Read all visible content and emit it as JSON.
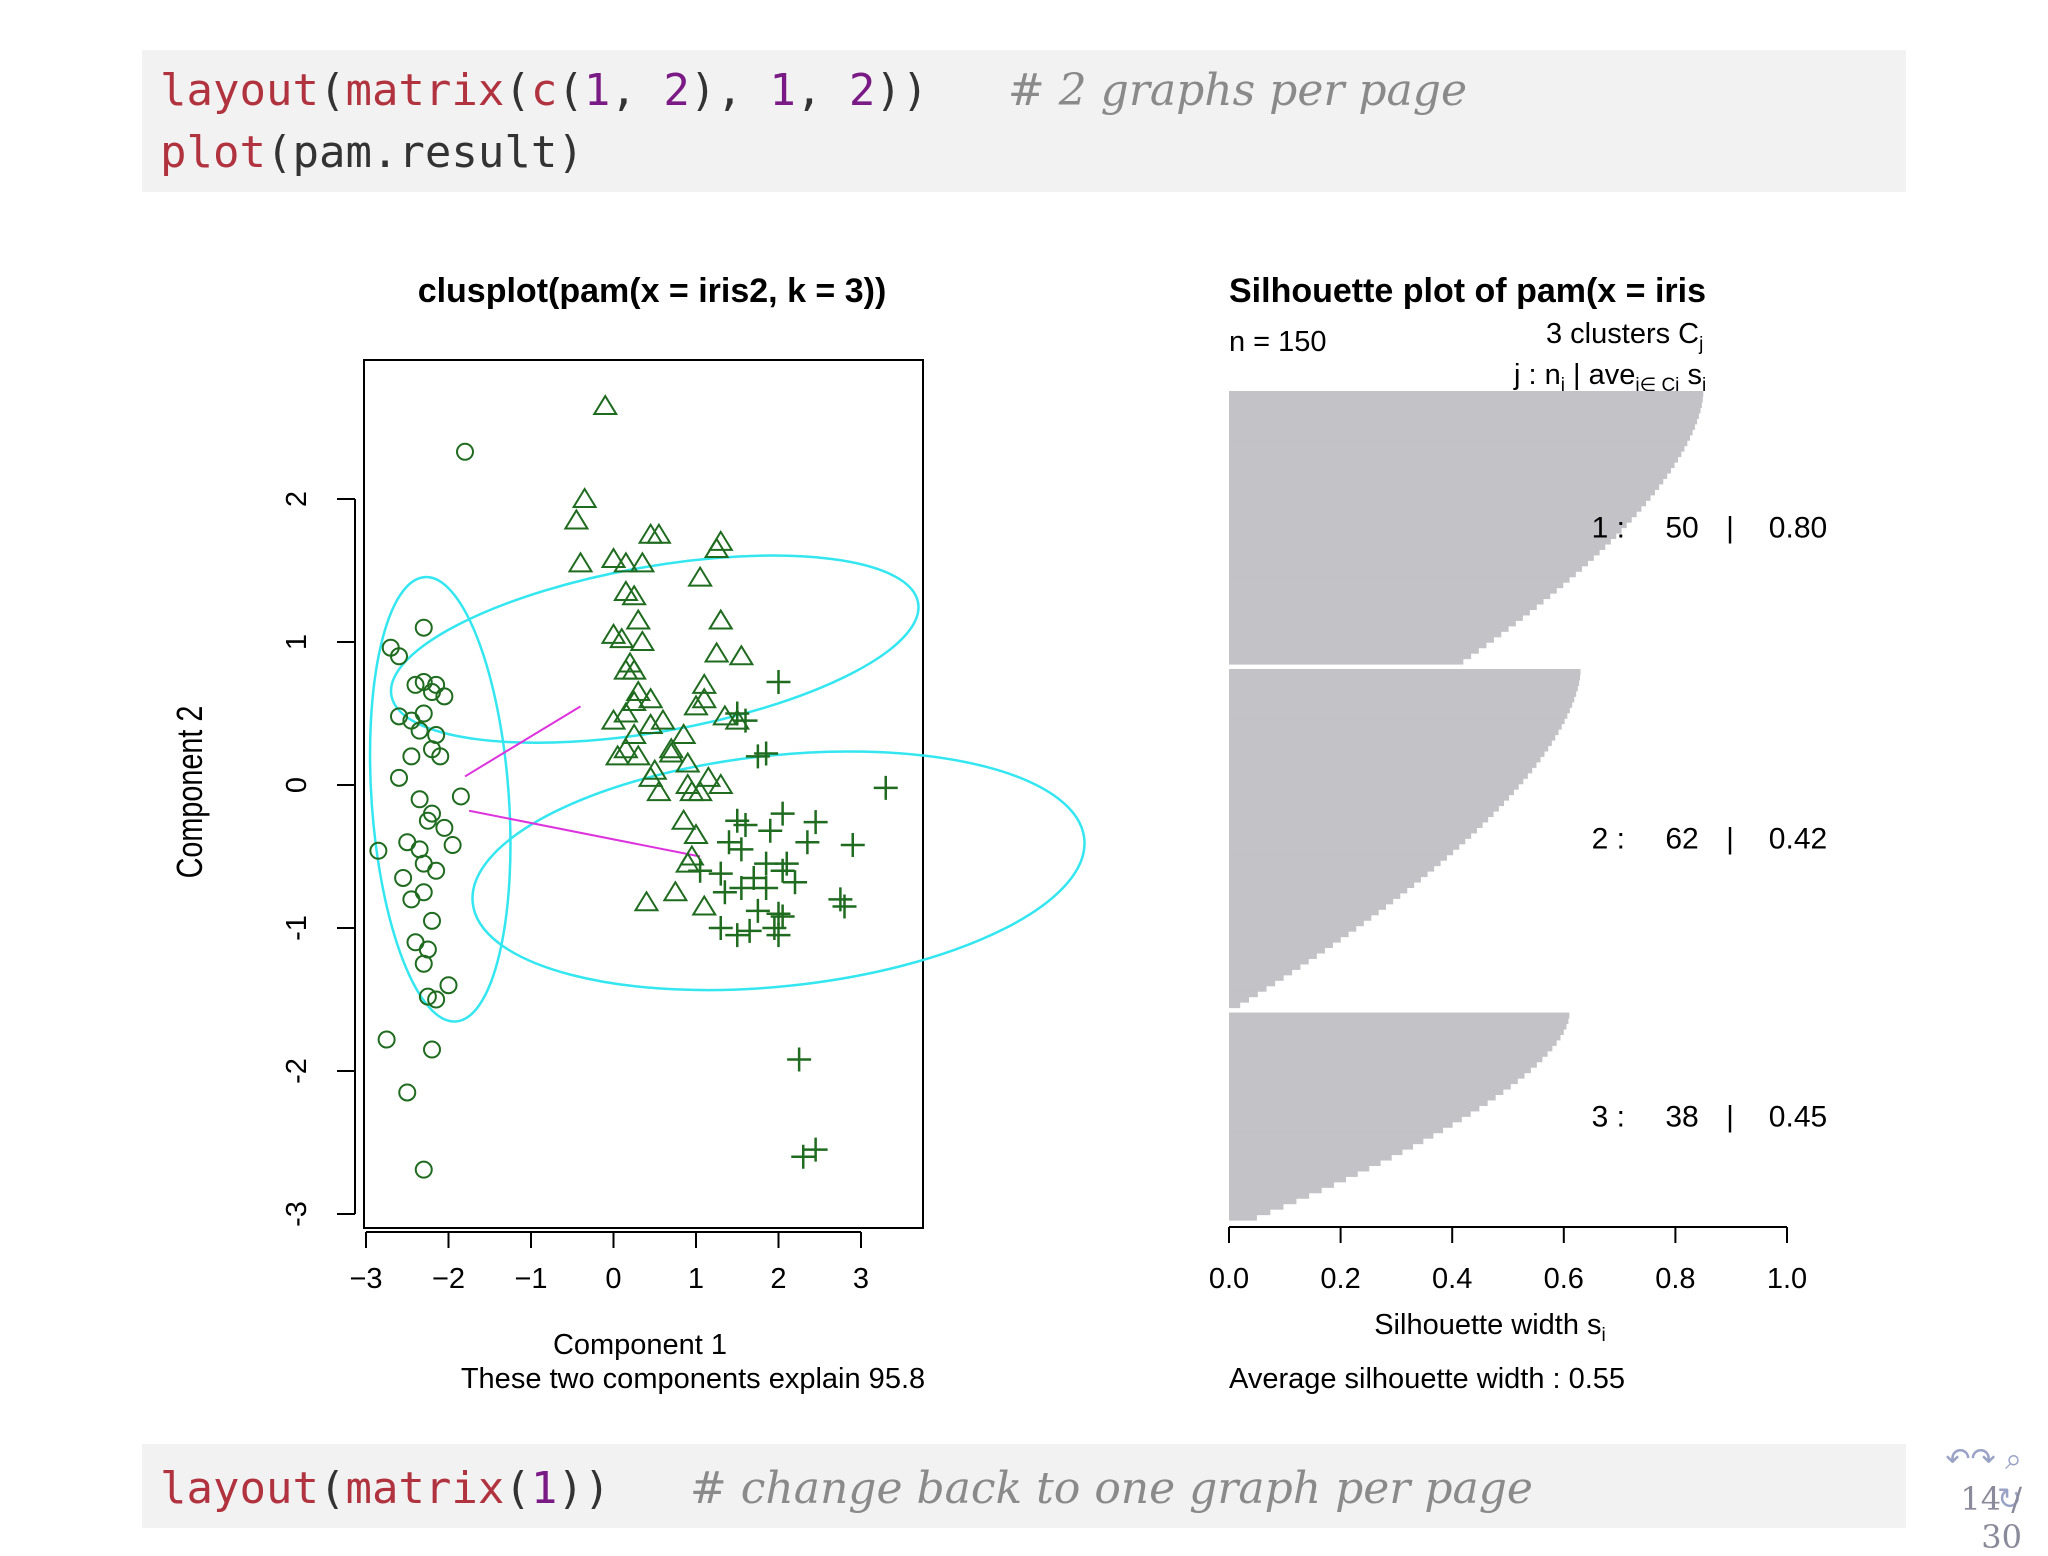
{
  "code_top": {
    "line1": {
      "fn1": "layout",
      "p1": "(",
      "fn2": "matrix",
      "p2": "(",
      "fn3": "c",
      "p3": "(",
      "n1": "1",
      "p4": ", ",
      "n2": "2",
      "p5": "), ",
      "n3": "1",
      "p6": ", ",
      "n4": "2",
      "p7": "))",
      "comment": "# 2 graphs per page"
    },
    "line2": {
      "fn1": "plot",
      "rest": "(pam.result)"
    }
  },
  "code_bottom": {
    "fn1": "layout",
    "p1": "(",
    "fn2": "matrix",
    "p2": "(",
    "n1": "1",
    "p3": "))",
    "comment": "# change back to one graph per page"
  },
  "nav": {
    "icons": "↶↷ ⌕ ↻",
    "page": "14 / 30"
  },
  "colors": {
    "ellipse": "#33e6f0",
    "points": "#1f6b1f",
    "link": "#dd33dd",
    "bar": "#c3c2c7"
  },
  "chart_data": [
    {
      "type": "scatter",
      "title": "clusplot(pam(x = iris2, k = 3))",
      "xlabel": "Component 1",
      "ylabel": "Component 2",
      "subtitle": "These two components explain 95.8",
      "xlim": [
        -3.0,
        3.7
      ],
      "ylim": [
        -3.0,
        3.0
      ],
      "xticks": [
        "−3",
        "−2",
        "−1",
        "0",
        "1",
        "2",
        "3"
      ],
      "yticks": [
        "-3",
        "-2",
        "-1",
        "0",
        "1",
        "2"
      ],
      "clusters": [
        {
          "marker": "circle",
          "ellipse": {
            "cx": -2.1,
            "cy": -0.1,
            "rx": 0.48,
            "ry": 2.7,
            "angle": 86
          },
          "points": [
            [
              -1.8,
              2.33
            ],
            [
              -2.7,
              0.96
            ],
            [
              -2.6,
              0.9
            ],
            [
              -2.3,
              1.1
            ],
            [
              -2.4,
              0.7
            ],
            [
              -2.3,
              0.72
            ],
            [
              -2.2,
              0.65
            ],
            [
              -2.45,
              0.45
            ],
            [
              -2.3,
              0.5
            ],
            [
              -2.35,
              0.38
            ],
            [
              -2.2,
              0.25
            ],
            [
              -2.1,
              0.2
            ],
            [
              -2.45,
              0.2
            ],
            [
              -2.6,
              0.05
            ],
            [
              -2.35,
              -0.1
            ],
            [
              -1.85,
              -0.08
            ],
            [
              -2.2,
              -0.2
            ],
            [
              -2.05,
              -0.3
            ],
            [
              -2.5,
              -0.4
            ],
            [
              -1.95,
              -0.42
            ],
            [
              -2.35,
              -0.45
            ],
            [
              -2.3,
              -0.55
            ],
            [
              -2.15,
              -0.6
            ],
            [
              -2.55,
              -0.65
            ],
            [
              -2.3,
              -0.75
            ],
            [
              -2.45,
              -0.8
            ],
            [
              -2.2,
              -0.95
            ],
            [
              -2.4,
              -1.1
            ],
            [
              -2.25,
              -1.15
            ],
            [
              -2.3,
              -1.25
            ],
            [
              -2.0,
              -1.4
            ],
            [
              -2.15,
              -1.5
            ],
            [
              -2.25,
              -1.48
            ],
            [
              -2.75,
              -1.78
            ],
            [
              -2.2,
              -1.85
            ],
            [
              -2.5,
              -2.15
            ],
            [
              -2.3,
              -2.69
            ],
            [
              -2.85,
              -0.46
            ],
            [
              -2.6,
              0.48
            ],
            [
              -2.15,
              0.35
            ],
            [
              -2.25,
              -0.25
            ],
            [
              -2.15,
              0.7
            ],
            [
              -2.05,
              0.62
            ]
          ]
        },
        {
          "marker": "triangle",
          "ellipse": {
            "cx": 0.5,
            "cy": 0.95,
            "rx": 1.87,
            "ry": 1.0,
            "angle": 80
          },
          "points": [
            [
              -0.1,
              2.65
            ],
            [
              -0.35,
              2.0
            ],
            [
              -0.45,
              1.85
            ],
            [
              -0.4,
              1.55
            ],
            [
              0.0,
              1.58
            ],
            [
              0.15,
              1.55
            ],
            [
              0.35,
              1.55
            ],
            [
              0.45,
              1.75
            ],
            [
              0.55,
              1.75
            ],
            [
              1.3,
              1.7
            ],
            [
              1.25,
              1.65
            ],
            [
              1.05,
              1.45
            ],
            [
              1.3,
              1.15
            ],
            [
              0.15,
              1.35
            ],
            [
              0.25,
              1.32
            ],
            [
              0.3,
              1.15
            ],
            [
              0.0,
              1.05
            ],
            [
              0.1,
              1.02
            ],
            [
              0.35,
              1.0
            ],
            [
              0.2,
              0.85
            ],
            [
              0.25,
              0.8
            ],
            [
              0.15,
              0.8
            ],
            [
              0.3,
              0.65
            ],
            [
              0.45,
              0.6
            ],
            [
              0.25,
              0.58
            ],
            [
              1.25,
              0.92
            ],
            [
              1.55,
              0.9
            ],
            [
              1.1,
              0.7
            ],
            [
              1.1,
              0.6
            ],
            [
              1.0,
              0.55
            ],
            [
              0.0,
              0.45
            ],
            [
              0.25,
              0.35
            ],
            [
              0.45,
              0.42
            ],
            [
              0.6,
              0.45
            ],
            [
              0.85,
              0.35
            ],
            [
              1.35,
              0.48
            ],
            [
              1.5,
              0.45
            ],
            [
              0.05,
              0.2
            ],
            [
              0.15,
              0.25
            ],
            [
              0.3,
              0.2
            ],
            [
              0.7,
              0.22
            ],
            [
              0.9,
              0.15
            ],
            [
              0.5,
              0.1
            ],
            [
              0.45,
              0.05
            ],
            [
              0.55,
              -0.05
            ],
            [
              0.9,
              0.0
            ],
            [
              0.95,
              -0.05
            ],
            [
              1.15,
              0.05
            ],
            [
              1.3,
              0.0
            ],
            [
              0.85,
              -0.25
            ],
            [
              1.0,
              -0.35
            ],
            [
              0.9,
              -0.55
            ],
            [
              0.75,
              -0.75
            ],
            [
              0.95,
              -0.5
            ],
            [
              1.1,
              -0.85
            ],
            [
              0.4,
              -0.82
            ],
            [
              1.05,
              -0.05
            ],
            [
              0.7,
              0.25
            ],
            [
              0.15,
              0.5
            ]
          ]
        },
        {
          "marker": "plus",
          "ellipse": {
            "cx": 2.0,
            "cy": -0.6,
            "rx": 2.15,
            "ry": 1.4,
            "angle": 84
          },
          "points": [
            [
              2.0,
              0.72
            ],
            [
              1.75,
              0.2
            ],
            [
              3.3,
              -0.02
            ],
            [
              1.5,
              -0.25
            ],
            [
              1.6,
              -0.28
            ],
            [
              2.45,
              -0.26
            ],
            [
              1.9,
              -0.32
            ],
            [
              2.35,
              -0.4
            ],
            [
              1.4,
              -0.4
            ],
            [
              1.55,
              -0.45
            ],
            [
              2.9,
              -0.42
            ],
            [
              1.85,
              -0.55
            ],
            [
              2.1,
              -0.55
            ],
            [
              2.05,
              -0.6
            ],
            [
              1.7,
              -0.65
            ],
            [
              1.3,
              -0.62
            ],
            [
              1.55,
              -0.72
            ],
            [
              1.35,
              -0.75
            ],
            [
              1.85,
              -0.72
            ],
            [
              2.2,
              -0.68
            ],
            [
              2.75,
              -0.8
            ],
            [
              2.8,
              -0.85
            ],
            [
              1.75,
              -0.88
            ],
            [
              2.0,
              -0.9
            ],
            [
              2.05,
              -0.92
            ],
            [
              1.3,
              -1.0
            ],
            [
              1.5,
              -1.05
            ],
            [
              1.65,
              -1.02
            ],
            [
              1.95,
              -1.0
            ],
            [
              2.0,
              -1.05
            ],
            [
              2.25,
              -1.92
            ],
            [
              2.3,
              -2.6
            ],
            [
              2.45,
              -2.55
            ],
            [
              1.85,
              0.22
            ],
            [
              1.5,
              0.5
            ],
            [
              1.6,
              0.45
            ],
            [
              1.05,
              -0.6
            ],
            [
              2.05,
              -0.2
            ]
          ]
        }
      ],
      "links": [
        [
          [
            -1.8,
            0.06
          ],
          [
            -0.4,
            0.55
          ]
        ],
        [
          [
            -1.75,
            -0.18
          ],
          [
            1.05,
            -0.5
          ]
        ]
      ]
    },
    {
      "type": "bar",
      "title": "Silhouette plot of pam(x = iris",
      "n_label": "n = 150",
      "header_line1": "3  clusters  C",
      "header_sub_j": "j",
      "header_line2_a": "j :  n",
      "header_line2_b": " | ave",
      "header_sub_i_cj": "i∈ Cj",
      "header_line2_c": "  s",
      "header_sub_i": "i",
      "xlabel": "Silhouette width s",
      "xlabel_sub": "i",
      "footer": "Average silhouette width :  0.55",
      "xlim": [
        0.0,
        1.0
      ],
      "xticks": [
        "0.0",
        "0.2",
        "0.4",
        "0.6",
        "0.8",
        "1.0"
      ],
      "clusters": [
        {
          "j": "1 :",
          "n": "50",
          "ave": "0.80",
          "max": 0.85,
          "min": 0.42,
          "count": 50
        },
        {
          "j": "2 :",
          "n": "62",
          "ave": "0.42",
          "max": 0.63,
          "min": 0.02,
          "count": 62
        },
        {
          "j": "3 :",
          "n": "38",
          "ave": "0.45",
          "max": 0.61,
          "min": 0.05,
          "count": 38
        }
      ],
      "bar_labels": {
        "sep": "|"
      }
    }
  ]
}
